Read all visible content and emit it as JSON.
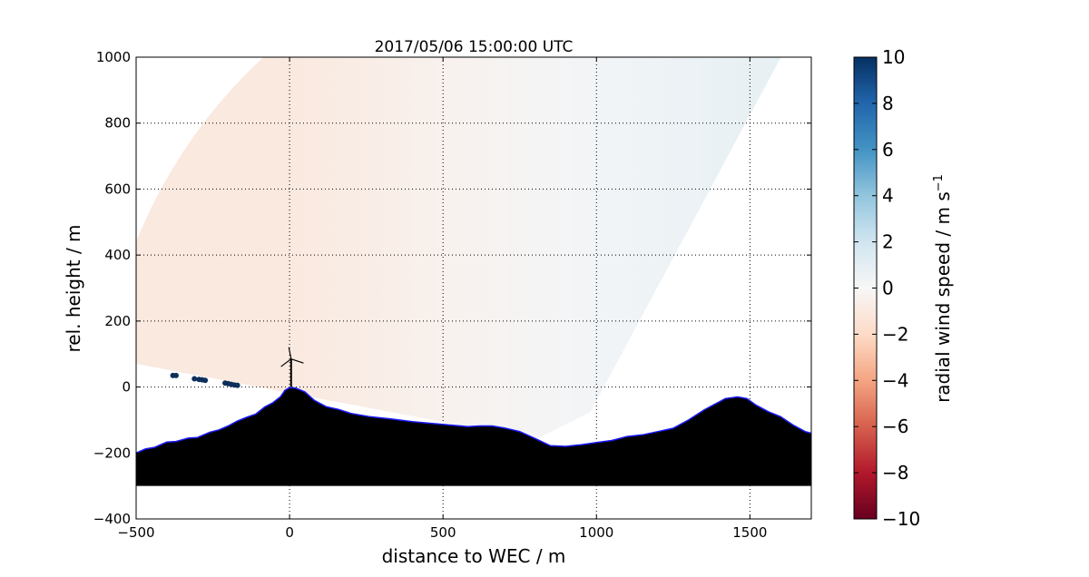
{
  "chart_data": {
    "type": "heatmap",
    "title": "2017/05/06 15:00:00 UTC",
    "xlabel": "distance to WEC / m",
    "ylabel": "rel. height / m",
    "xlim": [
      -500,
      1700
    ],
    "ylim": [
      -400,
      1000
    ],
    "xticks": [
      -500,
      0,
      500,
      1000,
      1500
    ],
    "xtick_labels": [
      "−500",
      "0",
      "500",
      "1000",
      "1500"
    ],
    "yticks": [
      -400,
      -200,
      0,
      200,
      400,
      600,
      800,
      1000
    ],
    "ytick_labels": [
      "−400",
      "−200",
      "0",
      "200",
      "400",
      "600",
      "800",
      "1000"
    ],
    "grid": true,
    "colorbar": {
      "label": "radial wind speed / m s",
      "label_exponent": "−1",
      "range": [
        -10,
        10
      ],
      "ticks": [
        -10,
        -8,
        -6,
        -4,
        -2,
        0,
        2,
        4,
        6,
        8,
        10
      ],
      "tick_labels": [
        "−10",
        "−8",
        "−6",
        "−4",
        "−2",
        "0",
        "2",
        "4",
        "6",
        "8",
        "10"
      ],
      "colors": [
        "#67001f",
        "#b2182b",
        "#d6604d",
        "#f4a582",
        "#fddbc7",
        "#f7f7f7",
        "#d1e5f0",
        "#92c5de",
        "#4393c3",
        "#2166ac",
        "#053061"
      ]
    },
    "scan_sector": {
      "origin_xy": [
        920,
        -180
      ],
      "range_max": 1550,
      "value_samples": [
        {
          "x": 0,
          "value": -1.0
        },
        {
          "x": 500,
          "value": -0.4
        },
        {
          "x": 900,
          "value": 0.2
        },
        {
          "x": 1300,
          "value": 0.6
        },
        {
          "x": 1650,
          "value": 0.9
        }
      ]
    },
    "terrain_profile": {
      "x": [
        -500,
        -470,
        -440,
        -400,
        -370,
        -330,
        -300,
        -260,
        -230,
        -200,
        -170,
        -140,
        -110,
        -80,
        -55,
        -30,
        -15,
        0,
        20,
        50,
        80,
        120,
        160,
        200,
        260,
        330,
        400,
        460,
        520,
        580,
        620,
        660,
        700,
        750,
        800,
        850,
        900,
        950,
        1000,
        1050,
        1100,
        1150,
        1200,
        1250,
        1300,
        1350,
        1380,
        1420,
        1460,
        1490,
        1520,
        1560,
        1600,
        1640,
        1680,
        1700
      ],
      "y": [
        -200,
        -188,
        -183,
        -167,
        -165,
        -155,
        -153,
        -137,
        -130,
        -118,
        -103,
        -92,
        -82,
        -60,
        -48,
        -30,
        -10,
        -2,
        -3,
        -15,
        -40,
        -60,
        -68,
        -80,
        -90,
        -97,
        -105,
        -110,
        -115,
        -120,
        -118,
        -118,
        -124,
        -135,
        -156,
        -178,
        -180,
        -175,
        -168,
        -162,
        -150,
        -145,
        -135,
        -125,
        -100,
        -70,
        -55,
        -35,
        -30,
        -35,
        -55,
        -75,
        -90,
        -115,
        -135,
        -140
      ],
      "floor": -300
    },
    "dots": [
      {
        "x": -380,
        "y": 35
      },
      {
        "x": -370,
        "y": 35
      },
      {
        "x": -310,
        "y": 25
      },
      {
        "x": -295,
        "y": 23
      },
      {
        "x": -285,
        "y": 22
      },
      {
        "x": -275,
        "y": 20
      },
      {
        "x": -210,
        "y": 12
      },
      {
        "x": -200,
        "y": 10
      },
      {
        "x": -190,
        "y": 8
      },
      {
        "x": -180,
        "y": 6
      },
      {
        "x": -170,
        "y": 5
      }
    ],
    "turbine": {
      "x": 5,
      "hub_height": 85,
      "rotor_radius": 40
    }
  }
}
